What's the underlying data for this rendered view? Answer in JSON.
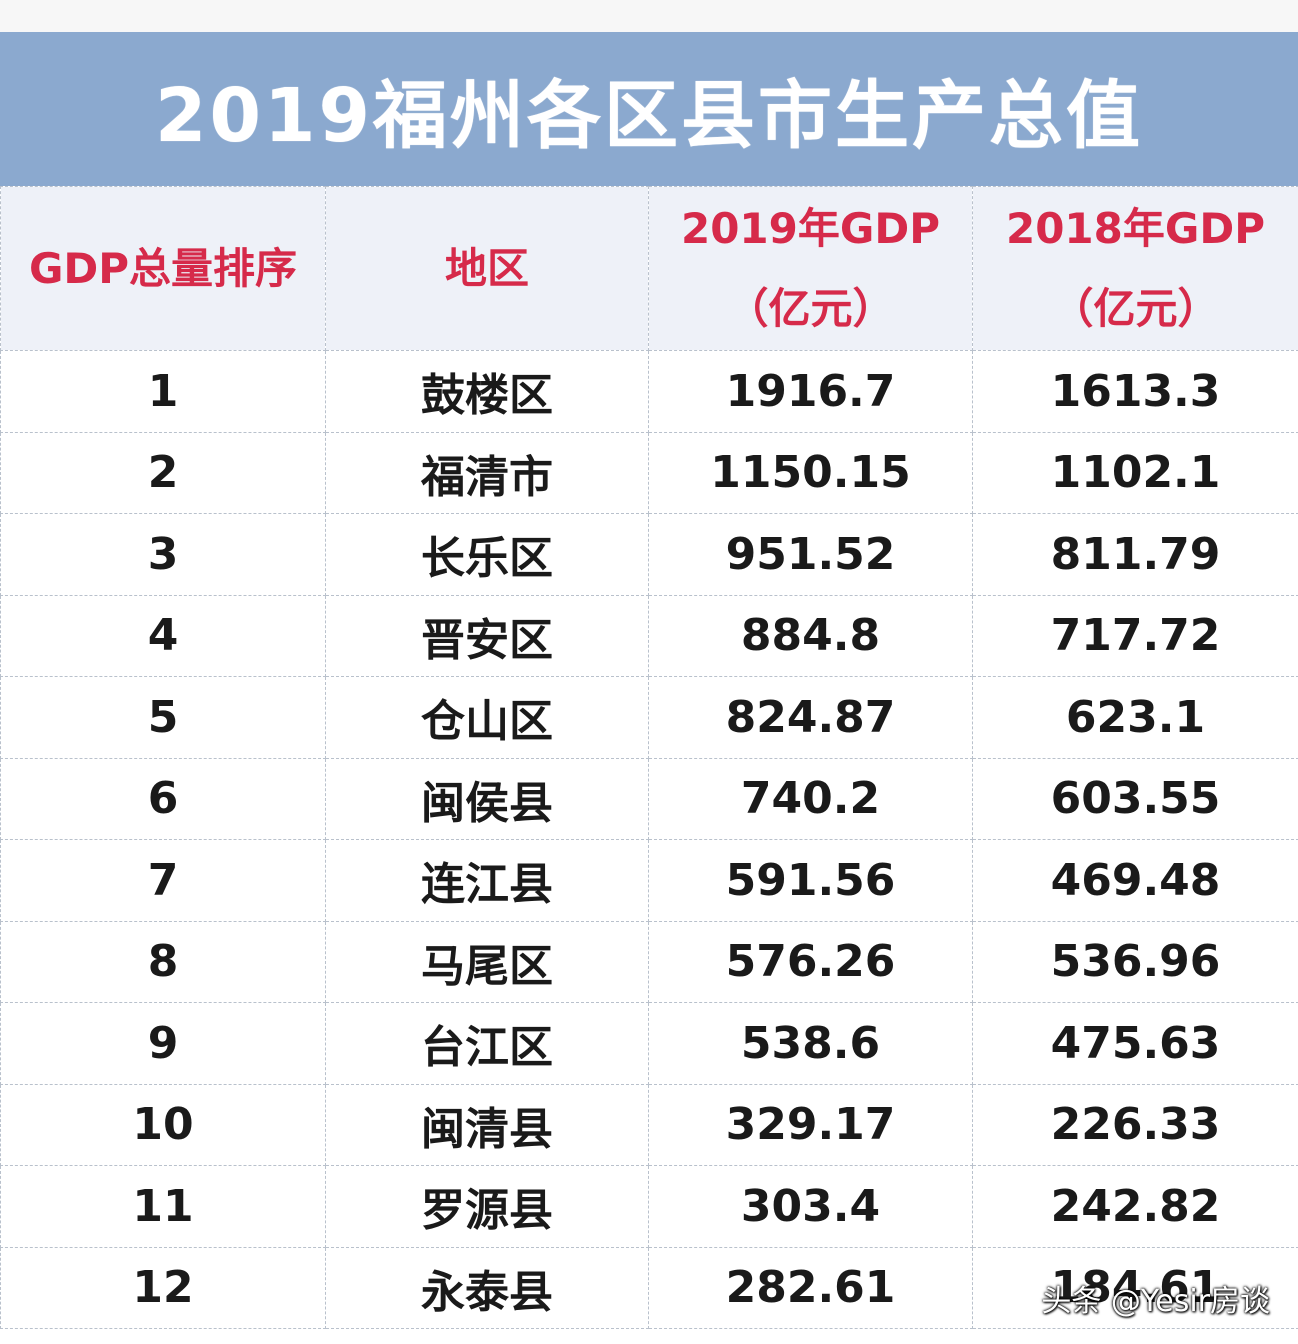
{
  "title": "2019福州各区县市生产总值",
  "header": {
    "rank": "GDP总量排序",
    "region": "地区",
    "gdp2019_line1": "2019年GDP",
    "gdp2019_line2": "（亿元）",
    "gdp2018_line1": "2018年GDP",
    "gdp2018_line2": "（亿元）"
  },
  "rows": [
    {
      "rank": "1",
      "region": "鼓楼区",
      "gdp2019": "1916.7",
      "gdp2018": "1613.3"
    },
    {
      "rank": "2",
      "region": "福清市",
      "gdp2019": "1150.15",
      "gdp2018": "1102.1"
    },
    {
      "rank": "3",
      "region": "长乐区",
      "gdp2019": "951.52",
      "gdp2018": "811.79"
    },
    {
      "rank": "4",
      "region": "晋安区",
      "gdp2019": "884.8",
      "gdp2018": "717.72"
    },
    {
      "rank": "5",
      "region": "仓山区",
      "gdp2019": "824.87",
      "gdp2018": "623.1"
    },
    {
      "rank": "6",
      "region": "闽侯县",
      "gdp2019": "740.2",
      "gdp2018": "603.55"
    },
    {
      "rank": "7",
      "region": "连江县",
      "gdp2019": "591.56",
      "gdp2018": "469.48"
    },
    {
      "rank": "8",
      "region": "马尾区",
      "gdp2019": "576.26",
      "gdp2018": "536.96"
    },
    {
      "rank": "9",
      "region": "台江区",
      "gdp2019": "538.6",
      "gdp2018": "475.63"
    },
    {
      "rank": "10",
      "region": "闽清县",
      "gdp2019": "329.17",
      "gdp2018": "226.33"
    },
    {
      "rank": "11",
      "region": "罗源县",
      "gdp2019": "303.4",
      "gdp2018": "242.82"
    },
    {
      "rank": "12",
      "region": "永泰县",
      "gdp2019": "282.61",
      "gdp2018": "184.61"
    }
  ],
  "watermark": "头条 @Yesir房谈",
  "colors": {
    "banner": "#8ba9cf",
    "header_text": "#d62a4a",
    "header_bg": "#eef1f8",
    "body_text": "#1a1a1a"
  }
}
